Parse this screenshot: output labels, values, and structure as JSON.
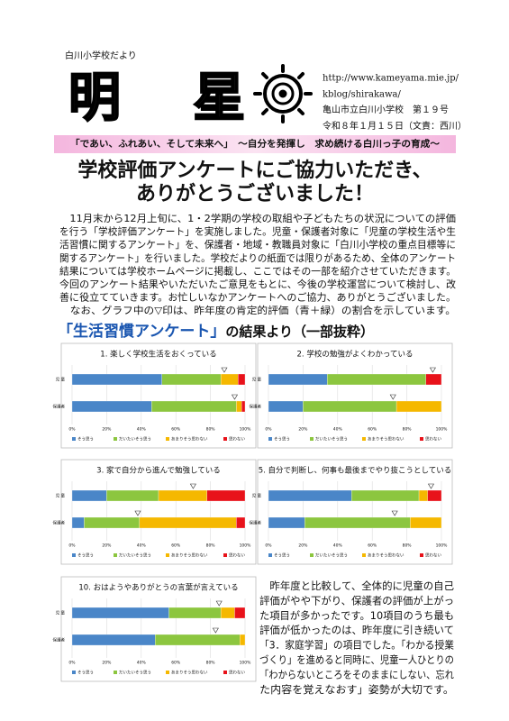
{
  "header": {
    "newsletter": "白川小学校だより",
    "title": "明 星",
    "url": [
      "http://www.kameyama.mie.jp/",
      "kblog/shirakawa/"
    ],
    "school": "亀山市立白川小学校　第１９号",
    "date": "令和８年１月１５日（文責：西川）"
  },
  "motto": "「であい、ふれあい、そして未来へ」　～自分を発揮し　求め続ける白川っ子の育成～",
  "headline": [
    "学校評価アンケートにご協力いただき、",
    "ありがとうございました！"
  ],
  "body": [
    "　11月末から12月上旬に、1・2学期の学校の取組や子どもたちの状況についての評価",
    "を行う「学校評価アンケート」を実施しました。児童・保護者対象に「児童の学校生活や生",
    "活習慣に関するアンケート」を、保護者・地域・教職員対象に「白川小学校の重点目標等に",
    "関するアンケート」を行いました。学校だよりの紙面では限りがあるため、全体のアンケート",
    "結果については学校ホームページに掲載し、ここではその一部を紹介させていただきます。",
    "今回のアンケート結果やいただいたご意見をもとに、今後の学校運営について検討し、改",
    "善に役立てていきます。お忙しいなかアンケートへのご協力、ありがとうございました。",
    "　なお、グラフ中の▽印は、昨年度の肯定的評価（青＋緑）の割合を示しています。"
  ],
  "section_title": {
    "highlight": "「生活習慣アンケート」",
    "rest": "の結果より（一部抜粋）"
  },
  "categories": [
    "児 童",
    "保護者"
  ],
  "series": [
    {
      "name": "そう思う",
      "color": "#4a86c8"
    },
    {
      "name": "だいたいそう思う",
      "color": "#8cc63f"
    },
    {
      "name": "あまりそう思わない",
      "color": "#f5b800"
    },
    {
      "name": "思わない",
      "color": "#e8121a"
    }
  ],
  "xlim": [
    0,
    100
  ],
  "xticks": [
    {
      "value": 0,
      "label": "0%"
    },
    {
      "value": 20,
      "label": "20%"
    },
    {
      "value": 40,
      "label": "40%"
    },
    {
      "value": 60,
      "label": "60%"
    },
    {
      "value": 80,
      "label": "80%"
    },
    {
      "value": 100,
      "label": "100%"
    }
  ],
  "charts": [
    {
      "title": "1. 楽しく学校生活をおくっている",
      "values": [
        [
          52,
          34,
          10,
          4
        ],
        [
          46,
          49,
          3,
          2
        ]
      ],
      "prev": [
        88,
        94
      ]
    },
    {
      "title": "2. 学校の勉強がよくわかっている",
      "values": [
        [
          34,
          57,
          0,
          9
        ],
        [
          20,
          54,
          26,
          0
        ]
      ],
      "prev": [
        95,
        72
      ]
    },
    {
      "title": "3. 家で自分から進んで勉強している",
      "values": [
        [
          20,
          30,
          28,
          22
        ],
        [
          7,
          32,
          56,
          5
        ]
      ],
      "prev": [
        70,
        38
      ]
    },
    {
      "title": "5. 自分で判断し、何事も最後までやり抜こうとしている",
      "values": [
        [
          48,
          39,
          5,
          8
        ],
        [
          21,
          61,
          18,
          0
        ]
      ],
      "prev": [
        94,
        73
      ]
    },
    {
      "title": "10. おはようやありがとうの言葉が言えている",
      "values": [
        [
          56,
          30,
          8,
          6
        ],
        [
          48,
          49,
          3,
          0
        ]
      ],
      "prev": [
        85,
        83
      ]
    }
  ],
  "closing": [
    "　昨年度と比較して、全体的に児童の自己",
    "評価がやや下がり、保護者の評価が上がっ",
    "た項目が多かったです。10項目のうち最も",
    "評価が低かったのは、昨年度に引き続いて",
    "「3．家庭学習」の項目でした。「わかる授業",
    "づくり」を進めると同時に、児童一人ひとりの",
    "「わからないところをそのままにしない、忘れ",
    "た内容を覚えなおす」姿勢が大切です。"
  ]
}
